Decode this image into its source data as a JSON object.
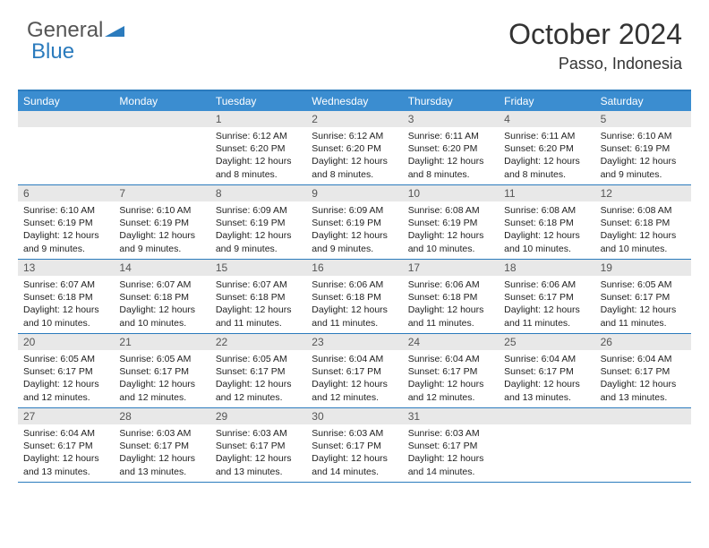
{
  "brand": {
    "part1": "General",
    "part2": "Blue"
  },
  "title": "October 2024",
  "location": "Passo, Indonesia",
  "colors": {
    "header_bar": "#3b8dd0",
    "accent_line": "#2b7bbd",
    "daynum_bg": "#e8e8e8",
    "text": "#222222",
    "bg": "#ffffff"
  },
  "typography": {
    "title_fontsize": 32,
    "subtitle_fontsize": 18,
    "dow_fontsize": 12,
    "cell_fontsize": 10.5
  },
  "day_names": [
    "Sunday",
    "Monday",
    "Tuesday",
    "Wednesday",
    "Thursday",
    "Friday",
    "Saturday"
  ],
  "weeks": [
    [
      null,
      null,
      {
        "n": "1",
        "sr": "Sunrise: 6:12 AM",
        "ss": "Sunset: 6:20 PM",
        "dl": "Daylight: 12 hours and 8 minutes."
      },
      {
        "n": "2",
        "sr": "Sunrise: 6:12 AM",
        "ss": "Sunset: 6:20 PM",
        "dl": "Daylight: 12 hours and 8 minutes."
      },
      {
        "n": "3",
        "sr": "Sunrise: 6:11 AM",
        "ss": "Sunset: 6:20 PM",
        "dl": "Daylight: 12 hours and 8 minutes."
      },
      {
        "n": "4",
        "sr": "Sunrise: 6:11 AM",
        "ss": "Sunset: 6:20 PM",
        "dl": "Daylight: 12 hours and 8 minutes."
      },
      {
        "n": "5",
        "sr": "Sunrise: 6:10 AM",
        "ss": "Sunset: 6:19 PM",
        "dl": "Daylight: 12 hours and 9 minutes."
      }
    ],
    [
      {
        "n": "6",
        "sr": "Sunrise: 6:10 AM",
        "ss": "Sunset: 6:19 PM",
        "dl": "Daylight: 12 hours and 9 minutes."
      },
      {
        "n": "7",
        "sr": "Sunrise: 6:10 AM",
        "ss": "Sunset: 6:19 PM",
        "dl": "Daylight: 12 hours and 9 minutes."
      },
      {
        "n": "8",
        "sr": "Sunrise: 6:09 AM",
        "ss": "Sunset: 6:19 PM",
        "dl": "Daylight: 12 hours and 9 minutes."
      },
      {
        "n": "9",
        "sr": "Sunrise: 6:09 AM",
        "ss": "Sunset: 6:19 PM",
        "dl": "Daylight: 12 hours and 9 minutes."
      },
      {
        "n": "10",
        "sr": "Sunrise: 6:08 AM",
        "ss": "Sunset: 6:19 PM",
        "dl": "Daylight: 12 hours and 10 minutes."
      },
      {
        "n": "11",
        "sr": "Sunrise: 6:08 AM",
        "ss": "Sunset: 6:18 PM",
        "dl": "Daylight: 12 hours and 10 minutes."
      },
      {
        "n": "12",
        "sr": "Sunrise: 6:08 AM",
        "ss": "Sunset: 6:18 PM",
        "dl": "Daylight: 12 hours and 10 minutes."
      }
    ],
    [
      {
        "n": "13",
        "sr": "Sunrise: 6:07 AM",
        "ss": "Sunset: 6:18 PM",
        "dl": "Daylight: 12 hours and 10 minutes."
      },
      {
        "n": "14",
        "sr": "Sunrise: 6:07 AM",
        "ss": "Sunset: 6:18 PM",
        "dl": "Daylight: 12 hours and 10 minutes."
      },
      {
        "n": "15",
        "sr": "Sunrise: 6:07 AM",
        "ss": "Sunset: 6:18 PM",
        "dl": "Daylight: 12 hours and 11 minutes."
      },
      {
        "n": "16",
        "sr": "Sunrise: 6:06 AM",
        "ss": "Sunset: 6:18 PM",
        "dl": "Daylight: 12 hours and 11 minutes."
      },
      {
        "n": "17",
        "sr": "Sunrise: 6:06 AM",
        "ss": "Sunset: 6:18 PM",
        "dl": "Daylight: 12 hours and 11 minutes."
      },
      {
        "n": "18",
        "sr": "Sunrise: 6:06 AM",
        "ss": "Sunset: 6:17 PM",
        "dl": "Daylight: 12 hours and 11 minutes."
      },
      {
        "n": "19",
        "sr": "Sunrise: 6:05 AM",
        "ss": "Sunset: 6:17 PM",
        "dl": "Daylight: 12 hours and 11 minutes."
      }
    ],
    [
      {
        "n": "20",
        "sr": "Sunrise: 6:05 AM",
        "ss": "Sunset: 6:17 PM",
        "dl": "Daylight: 12 hours and 12 minutes."
      },
      {
        "n": "21",
        "sr": "Sunrise: 6:05 AM",
        "ss": "Sunset: 6:17 PM",
        "dl": "Daylight: 12 hours and 12 minutes."
      },
      {
        "n": "22",
        "sr": "Sunrise: 6:05 AM",
        "ss": "Sunset: 6:17 PM",
        "dl": "Daylight: 12 hours and 12 minutes."
      },
      {
        "n": "23",
        "sr": "Sunrise: 6:04 AM",
        "ss": "Sunset: 6:17 PM",
        "dl": "Daylight: 12 hours and 12 minutes."
      },
      {
        "n": "24",
        "sr": "Sunrise: 6:04 AM",
        "ss": "Sunset: 6:17 PM",
        "dl": "Daylight: 12 hours and 12 minutes."
      },
      {
        "n": "25",
        "sr": "Sunrise: 6:04 AM",
        "ss": "Sunset: 6:17 PM",
        "dl": "Daylight: 12 hours and 13 minutes."
      },
      {
        "n": "26",
        "sr": "Sunrise: 6:04 AM",
        "ss": "Sunset: 6:17 PM",
        "dl": "Daylight: 12 hours and 13 minutes."
      }
    ],
    [
      {
        "n": "27",
        "sr": "Sunrise: 6:04 AM",
        "ss": "Sunset: 6:17 PM",
        "dl": "Daylight: 12 hours and 13 minutes."
      },
      {
        "n": "28",
        "sr": "Sunrise: 6:03 AM",
        "ss": "Sunset: 6:17 PM",
        "dl": "Daylight: 12 hours and 13 minutes."
      },
      {
        "n": "29",
        "sr": "Sunrise: 6:03 AM",
        "ss": "Sunset: 6:17 PM",
        "dl": "Daylight: 12 hours and 13 minutes."
      },
      {
        "n": "30",
        "sr": "Sunrise: 6:03 AM",
        "ss": "Sunset: 6:17 PM",
        "dl": "Daylight: 12 hours and 14 minutes."
      },
      {
        "n": "31",
        "sr": "Sunrise: 6:03 AM",
        "ss": "Sunset: 6:17 PM",
        "dl": "Daylight: 12 hours and 14 minutes."
      },
      null,
      null
    ]
  ]
}
